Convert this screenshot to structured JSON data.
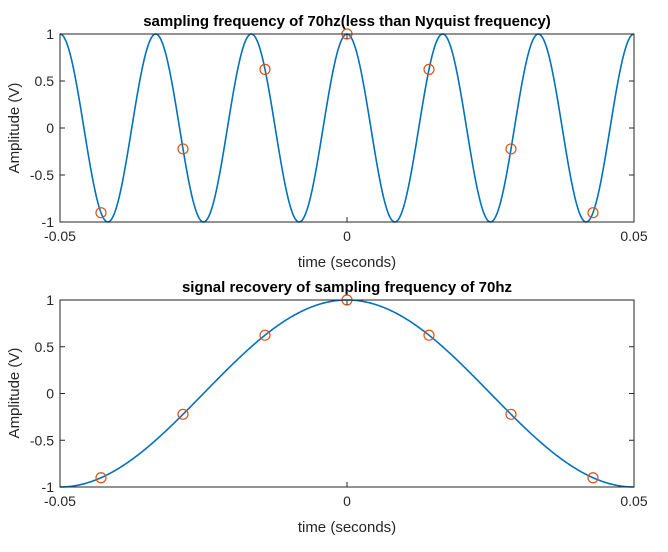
{
  "colors": {
    "signal": "#0072BD",
    "samples": "#D95319",
    "axes": "#262626"
  },
  "chart_data": [
    {
      "type": "line",
      "title": "sampling frequency of 70hz(less than Nyquist frequency)",
      "xlabel": "time (seconds)",
      "ylabel": "Amplitude (V)",
      "xlim": [
        -0.05,
        0.05
      ],
      "ylim": [
        -1,
        1
      ],
      "x_ticks": [
        -0.05,
        0,
        0.05
      ],
      "x_tick_labels": [
        "-0.05",
        "0",
        "0.05"
      ],
      "y_ticks": [
        1,
        0.5,
        0,
        -0.5,
        -1
      ],
      "y_tick_labels": [
        "1",
        "0.5",
        "0",
        "-0.5",
        "-1"
      ],
      "grid": false,
      "series": [
        {
          "kind": "line",
          "function": "cos",
          "frequency_hz": 60
        },
        {
          "kind": "markers",
          "marker": "circle",
          "x": [
            -0.042857,
            -0.028571,
            -0.014286,
            0,
            0.014286,
            0.028571,
            0.042857
          ],
          "y": [
            -0.901,
            -0.2225,
            0.6235,
            1,
            0.6235,
            -0.2225,
            -0.901
          ]
        }
      ]
    },
    {
      "type": "line",
      "title": "signal recovery of sampling frequency of 70hz",
      "xlabel": "time (seconds)",
      "ylabel": "Amplitude (V)",
      "xlim": [
        -0.05,
        0.05
      ],
      "ylim": [
        -1,
        1
      ],
      "x_ticks": [
        -0.05,
        0,
        0.05
      ],
      "x_tick_labels": [
        "-0.05",
        "0",
        "0.05"
      ],
      "y_ticks": [
        1,
        0.5,
        0,
        -0.5,
        -1
      ],
      "y_tick_labels": [
        "1",
        "0.5",
        "0",
        "-0.5",
        "-1"
      ],
      "grid": false,
      "series": [
        {
          "kind": "line",
          "function": "cos",
          "frequency_hz": 10
        },
        {
          "kind": "markers",
          "marker": "circle",
          "x": [
            -0.042857,
            -0.028571,
            -0.014286,
            0,
            0.014286,
            0.028571,
            0.042857
          ],
          "y": [
            -0.901,
            -0.2225,
            0.6235,
            1,
            0.6235,
            -0.2225,
            -0.901
          ]
        }
      ]
    }
  ]
}
